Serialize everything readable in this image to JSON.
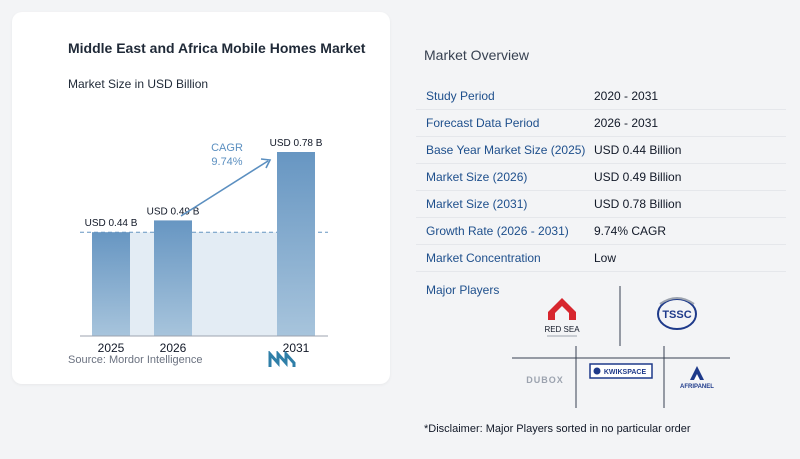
{
  "chart": {
    "title": "Middle East and Africa Mobile Homes Market",
    "subtitle": "Market Size in USD Billion",
    "cagr_label": "CAGR",
    "cagr_value": "9.74%",
    "source": "Source:  Mordor Intelligence"
  },
  "chart_data": {
    "type": "bar",
    "title": "Middle East and Africa Mobile Homes Market",
    "subtitle": "Market Size in USD Billion",
    "categories": [
      "2025",
      "2026",
      "2031"
    ],
    "values": [
      0.44,
      0.49,
      0.78
    ],
    "data_labels": [
      "USD 0.44 B",
      "USD 0.49 B",
      "USD 0.78 B"
    ],
    "annotation": "CAGR 9.74%",
    "ylim": [
      0,
      0.78
    ],
    "grid": false,
    "colors": {
      "bar": "#6796c2",
      "bar_fade": "#a7c4dc",
      "area": "#e3ecf4",
      "arrow": "#5b8fc0"
    }
  },
  "overview": {
    "title": "Market Overview",
    "rows": [
      {
        "label": "Study Period",
        "value": "2020 - 2031"
      },
      {
        "label": "Forecast Data Period",
        "value": "2026 - 2031"
      },
      {
        "label": "Base Year Market Size (2025)",
        "value": "USD 0.44 Billion"
      },
      {
        "label": "Market Size (2026)",
        "value": "USD 0.49 Billion"
      },
      {
        "label": "Market Size (2031)",
        "value": "USD 0.78 Billion"
      },
      {
        "label": "Growth Rate (2026 - 2031)",
        "value": "9.74% CAGR"
      },
      {
        "label": "Market Concentration",
        "value": "Low"
      }
    ]
  },
  "players": {
    "title": "Major Players",
    "logos": [
      "RED SEA",
      "TSSC",
      "DUBOX",
      "KWIKSPACE",
      "AFRIPANEL"
    ],
    "disclaimer": "*Disclaimer: Major Players sorted in no particular order"
  }
}
